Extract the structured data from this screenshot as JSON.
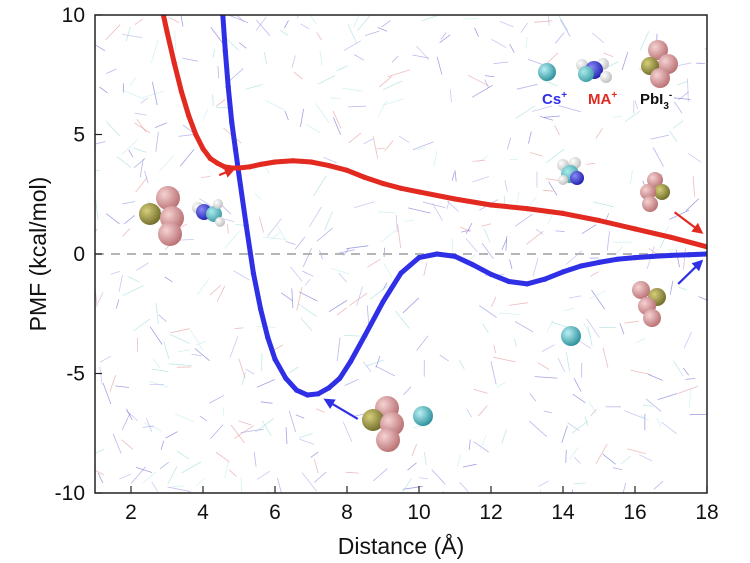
{
  "chart_data": {
    "type": "line",
    "xlabel": "Distance (Å)",
    "ylabel": "PMF (kcal/mol)",
    "xlim": [
      1,
      18
    ],
    "ylim": [
      -10,
      10
    ],
    "x_ticks": [
      2,
      4,
      6,
      8,
      10,
      12,
      14,
      16,
      18
    ],
    "y_ticks": [
      -10,
      -5,
      0,
      5,
      10
    ],
    "zero_line": "dashed",
    "background": "molecular-dynamics-snapshot",
    "colors": {
      "cs": "#2f2fe6",
      "ma": "#e22a21",
      "pbi3": "#111111",
      "zero": "#b5b5b5"
    },
    "legend": {
      "placement": "top-right",
      "entries": [
        {
          "label": "Cs",
          "charge": "+",
          "color": "#2f2fe6"
        },
        {
          "label": "MA",
          "charge": "+",
          "color": "#e22a21"
        },
        {
          "label": "PbI",
          "sub": "3",
          "charge": "-",
          "color": "#111111"
        }
      ]
    },
    "series": [
      {
        "key": "cs",
        "color": "#2f2fe6",
        "x": [
          4.55,
          4.62,
          4.7,
          4.8,
          4.9,
          5.0,
          5.2,
          5.4,
          5.6,
          5.8,
          6.0,
          6.3,
          6.6,
          6.9,
          7.2,
          7.5,
          7.8,
          8.1,
          8.5,
          9.0,
          9.5,
          10.0,
          10.5,
          11.0,
          11.5,
          12.0,
          12.5,
          13.0,
          13.5,
          14.0,
          14.5,
          15.0,
          15.5,
          16.0,
          16.5,
          17.0,
          17.5,
          18.0
        ],
        "y": [
          10,
          8.5,
          7.0,
          5.5,
          4.4,
          3.3,
          1.2,
          -0.8,
          -2.3,
          -3.5,
          -4.4,
          -5.2,
          -5.7,
          -5.9,
          -5.85,
          -5.6,
          -5.2,
          -4.5,
          -3.4,
          -2.0,
          -0.8,
          -0.15,
          0.0,
          -0.1,
          -0.45,
          -0.85,
          -1.15,
          -1.25,
          -1.05,
          -0.75,
          -0.5,
          -0.35,
          -0.22,
          -0.15,
          -0.1,
          -0.06,
          -0.03,
          0.0
        ]
      },
      {
        "key": "ma",
        "color": "#e22a21",
        "x": [
          2.9,
          3.0,
          3.2,
          3.4,
          3.6,
          3.8,
          4.0,
          4.2,
          4.4,
          4.6,
          4.8,
          5.0,
          5.3,
          5.6,
          6.0,
          6.5,
          7.0,
          7.5,
          8.0,
          8.5,
          9.0,
          9.5,
          10.0,
          11.0,
          12.0,
          13.0,
          14.0,
          15.0,
          16.0,
          17.0,
          18.0
        ],
        "y": [
          10,
          9.3,
          8.0,
          6.8,
          5.8,
          5.0,
          4.4,
          4.0,
          3.8,
          3.65,
          3.6,
          3.6,
          3.65,
          3.75,
          3.85,
          3.9,
          3.85,
          3.7,
          3.5,
          3.2,
          2.95,
          2.75,
          2.6,
          2.3,
          2.05,
          1.9,
          1.7,
          1.4,
          1.05,
          0.7,
          0.3
        ]
      }
    ],
    "annotations": [
      {
        "name": "ma-min-arrow",
        "color": "#e22a21",
        "from": [
          4.45,
          3.3
        ],
        "to": [
          4.85,
          3.55
        ]
      },
      {
        "name": "ma-end-arrow",
        "color": "#e22a21",
        "from": [
          17.1,
          1.75
        ],
        "to": [
          17.85,
          0.9
        ]
      },
      {
        "name": "cs-min-arrow",
        "color": "#2f2fe6",
        "from": [
          8.3,
          -6.9
        ],
        "to": [
          7.4,
          -6.1
        ]
      },
      {
        "name": "cs-end-arrow",
        "color": "#2f2fe6",
        "from": [
          17.2,
          -1.25
        ],
        "to": [
          17.85,
          -0.3
        ]
      }
    ]
  }
}
